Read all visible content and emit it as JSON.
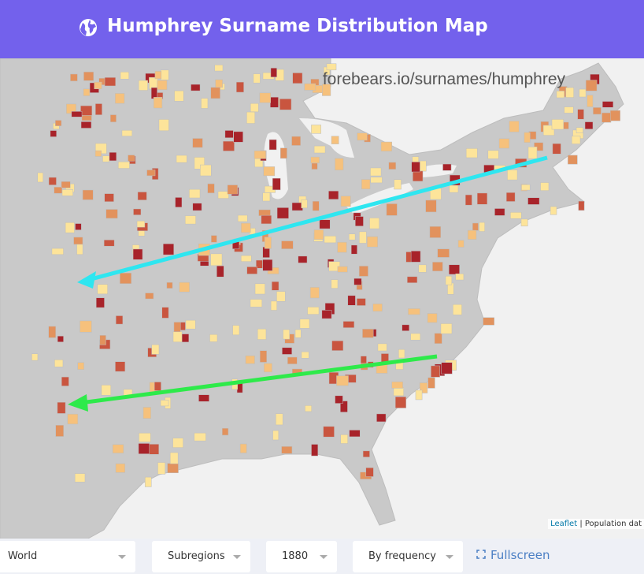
{
  "header": {
    "title": "Humphrey Surname Distribution Map"
  },
  "map": {
    "watermark": "forebears.io/surnames/humphrey",
    "attribution": {
      "link": "Leaflet",
      "text": "| Population dat"
    }
  },
  "controls": {
    "region": "World",
    "level": "Subregions",
    "year": "1880",
    "mode": "By frequency",
    "fullscreen": "Fullscreen"
  }
}
